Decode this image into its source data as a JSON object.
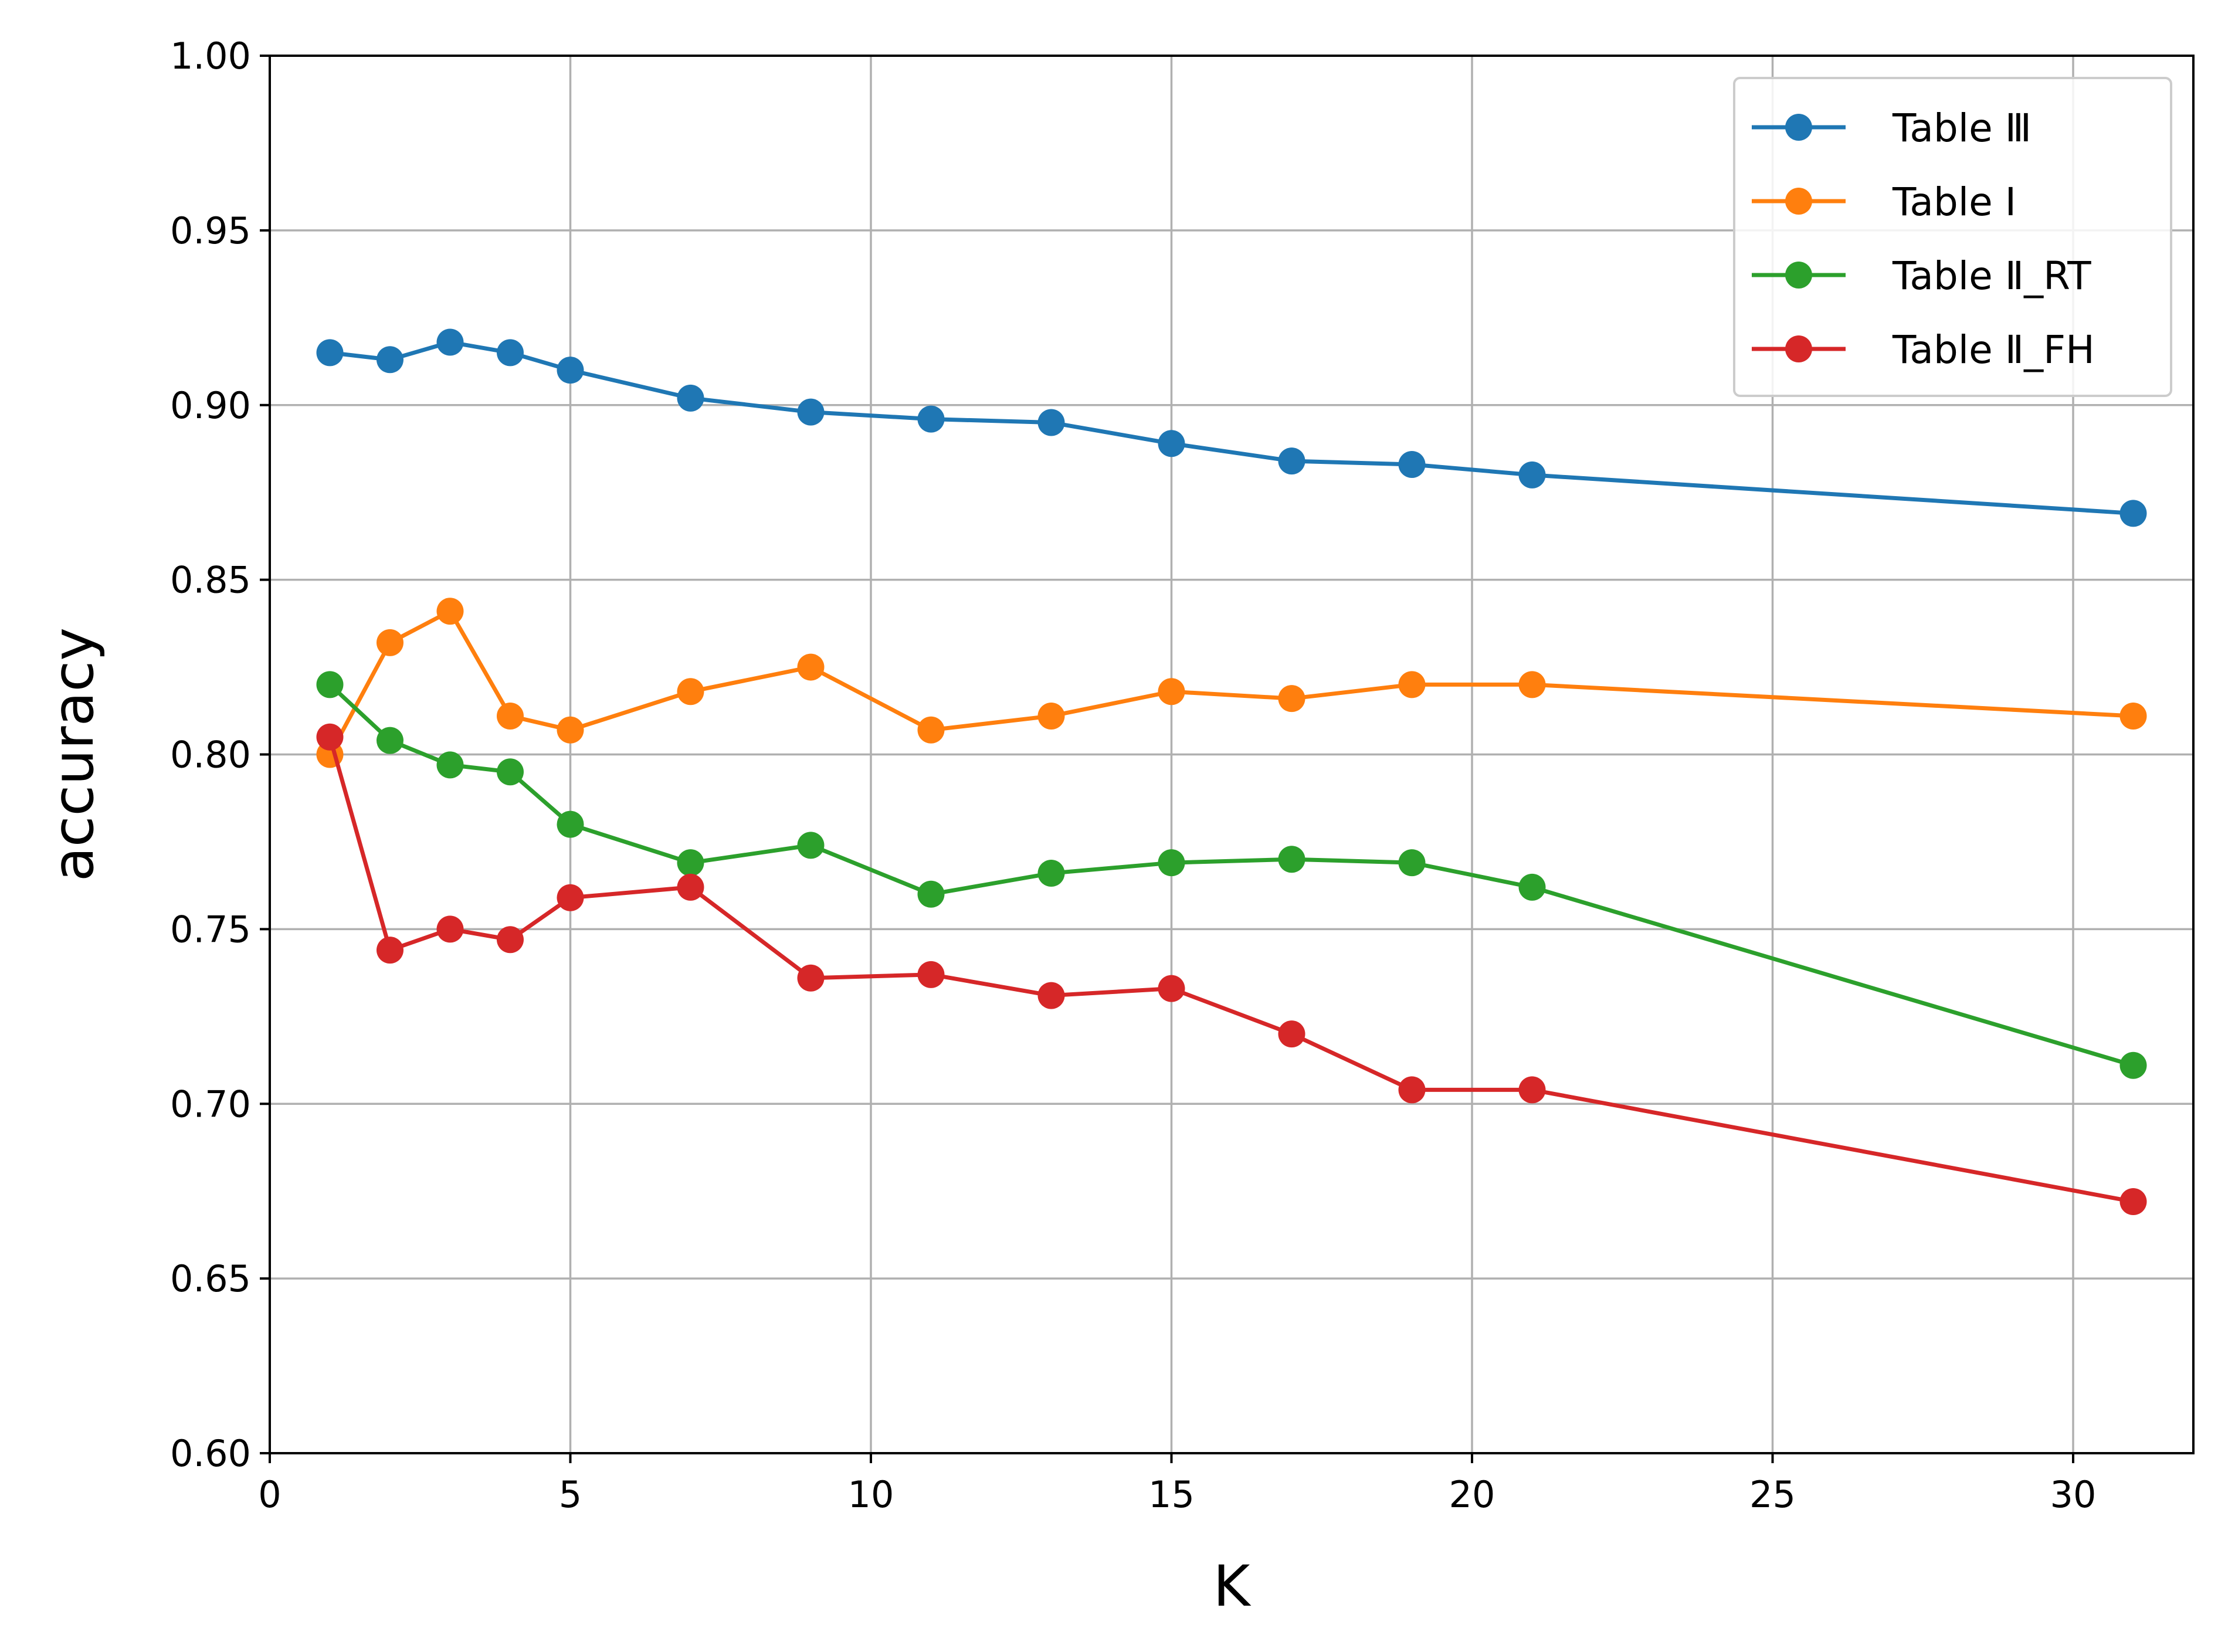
{
  "chart_data": {
    "type": "line",
    "title": "",
    "xlabel": "K",
    "ylabel": "accuracy",
    "xlim": [
      0,
      32
    ],
    "ylim": [
      0.6,
      1.0
    ],
    "x_ticks": [
      0,
      5,
      10,
      15,
      20,
      25,
      30
    ],
    "x_tick_labels": [
      "0",
      "5",
      "10",
      "15",
      "20",
      "25",
      "30"
    ],
    "y_ticks": [
      0.6,
      0.65,
      0.7,
      0.75,
      0.8,
      0.85,
      0.9,
      0.95,
      1.0
    ],
    "y_tick_labels": [
      "0.60",
      "0.65",
      "0.70",
      "0.75",
      "0.80",
      "0.85",
      "0.90",
      "0.95",
      "1.00"
    ],
    "grid": true,
    "legend_position": "top-right",
    "x": [
      1,
      2,
      3,
      4,
      5,
      7,
      9,
      11,
      13,
      15,
      17,
      19,
      21,
      31
    ],
    "series": [
      {
        "name": "Table Ⅲ",
        "color": "#1f77b4",
        "values": [
          0.915,
          0.913,
          0.918,
          0.915,
          0.91,
          0.902,
          0.898,
          0.896,
          0.895,
          0.889,
          0.884,
          0.883,
          0.88,
          0.869
        ]
      },
      {
        "name": "Table I",
        "color": "#ff7f0e",
        "values": [
          0.8,
          0.832,
          0.841,
          0.811,
          0.807,
          0.818,
          0.825,
          0.807,
          0.811,
          0.818,
          0.816,
          0.82,
          0.82,
          0.811
        ]
      },
      {
        "name": "Table Ⅱ_RT",
        "color": "#2ca02c",
        "values": [
          0.82,
          0.804,
          0.797,
          0.795,
          0.78,
          0.769,
          0.774,
          0.76,
          0.766,
          0.769,
          0.77,
          0.769,
          0.762,
          0.711
        ]
      },
      {
        "name": "Table Ⅱ_FH",
        "color": "#d62728",
        "values": [
          0.805,
          0.744,
          0.75,
          0.747,
          0.759,
          0.762,
          0.736,
          0.737,
          0.731,
          0.733,
          0.72,
          0.704,
          0.704,
          0.672
        ]
      }
    ]
  }
}
